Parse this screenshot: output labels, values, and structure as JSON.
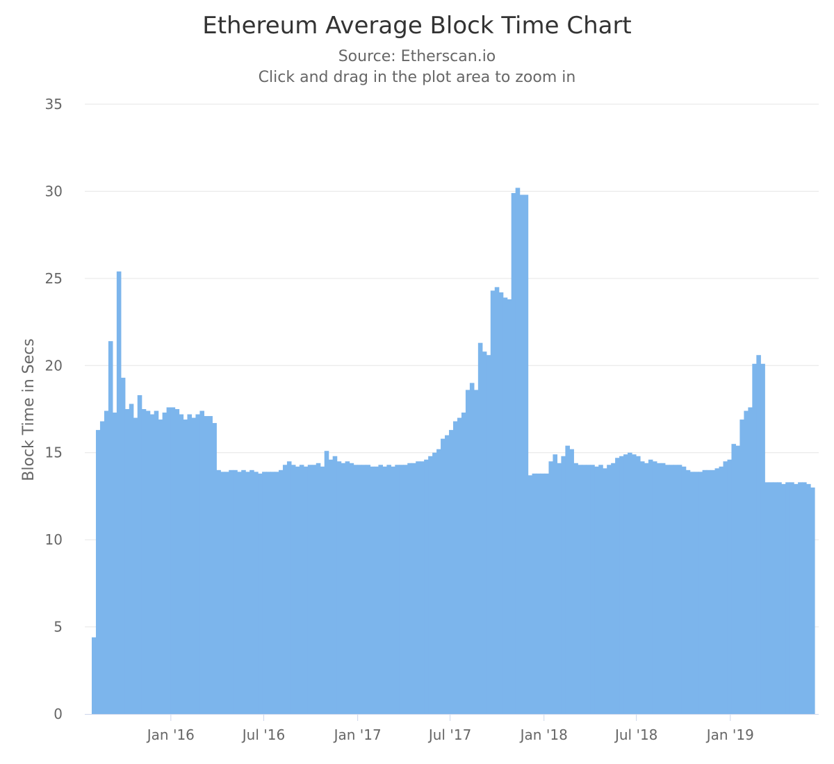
{
  "chart_data": {
    "type": "bar",
    "title": "Ethereum Average Block Time Chart",
    "subtitle": "Source: Etherscan.io",
    "subtitle2": "Click and drag in the plot area to zoom in",
    "xlabel": "",
    "ylabel": "Block Time in Secs",
    "ylim": [
      0,
      35
    ],
    "y_ticks": [
      0,
      5,
      10,
      15,
      20,
      25,
      30,
      35
    ],
    "x_range": [
      "2015-07-30",
      "2019-06-15"
    ],
    "x_ticks": [
      {
        "date": "2016-01-01",
        "label": "Jan '16"
      },
      {
        "date": "2016-07-01",
        "label": "Jul '16"
      },
      {
        "date": "2017-01-01",
        "label": "Jan '17"
      },
      {
        "date": "2017-07-01",
        "label": "Jul '17"
      },
      {
        "date": "2018-01-01",
        "label": "Jan '18"
      },
      {
        "date": "2018-07-01",
        "label": "Jul '18"
      },
      {
        "date": "2019-01-01",
        "label": "Jan '19"
      }
    ],
    "grid": true,
    "legend": "none",
    "color": "#7cb5ec",
    "series": [
      {
        "date_start": "2015-07-30",
        "date_end": "2019-06-15",
        "values": [
          4.4,
          16.3,
          16.8,
          17.4,
          21.4,
          17.3,
          25.4,
          19.3,
          17.5,
          17.8,
          17.0,
          18.3,
          17.5,
          17.4,
          17.2,
          17.4,
          16.9,
          17.3,
          17.6,
          17.6,
          17.5,
          17.2,
          16.9,
          17.2,
          17.0,
          17.2,
          17.4,
          17.1,
          17.1,
          16.7,
          14.0,
          13.9,
          13.9,
          14.0,
          14.0,
          13.9,
          14.0,
          13.9,
          14.0,
          13.9,
          13.8,
          13.9,
          13.9,
          13.9,
          13.9,
          14.0,
          14.3,
          14.5,
          14.3,
          14.2,
          14.3,
          14.2,
          14.3,
          14.3,
          14.4,
          14.2,
          15.1,
          14.6,
          14.8,
          14.5,
          14.4,
          14.5,
          14.4,
          14.3,
          14.3,
          14.3,
          14.3,
          14.2,
          14.2,
          14.3,
          14.2,
          14.3,
          14.2,
          14.3,
          14.3,
          14.3,
          14.4,
          14.4,
          14.5,
          14.5,
          14.6,
          14.8,
          15.0,
          15.2,
          15.8,
          16.0,
          16.3,
          16.8,
          17.0,
          17.3,
          18.6,
          19.0,
          18.6,
          21.3,
          20.8,
          20.6,
          24.3,
          24.5,
          24.2,
          23.9,
          23.8,
          29.9,
          30.2,
          29.8,
          29.8,
          13.7,
          13.8,
          13.8,
          13.8,
          13.8,
          14.5,
          14.9,
          14.4,
          14.8,
          15.4,
          15.2,
          14.4,
          14.3,
          14.3,
          14.3,
          14.3,
          14.2,
          14.3,
          14.1,
          14.3,
          14.4,
          14.7,
          14.8,
          14.9,
          15.0,
          14.9,
          14.8,
          14.5,
          14.4,
          14.6,
          14.5,
          14.4,
          14.4,
          14.3,
          14.3,
          14.3,
          14.3,
          14.2,
          14.0,
          13.9,
          13.9,
          13.9,
          14.0,
          14.0,
          14.0,
          14.1,
          14.2,
          14.5,
          14.6,
          15.5,
          15.4,
          16.9,
          17.4,
          17.6,
          20.1,
          20.6,
          20.1,
          13.3,
          13.3,
          13.3,
          13.3,
          13.2,
          13.3,
          13.3,
          13.2,
          13.3,
          13.3,
          13.2,
          13.0
        ]
      }
    ]
  }
}
